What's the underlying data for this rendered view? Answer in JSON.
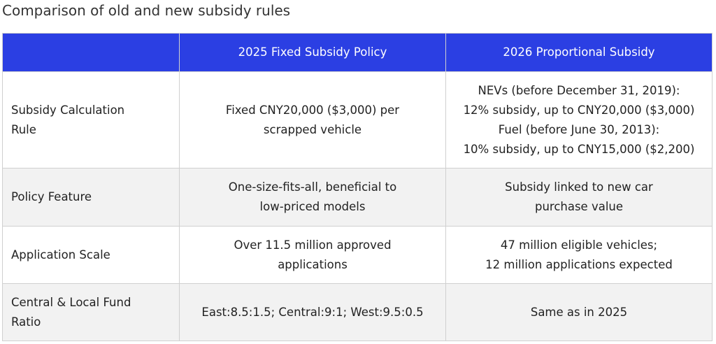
{
  "title": "Comparison of old and new subsidy rules",
  "table": {
    "header": [
      "2025 Fixed Subsidy Policy",
      "2026 Proportional Subsidy"
    ],
    "rows": [
      {
        "label": [
          "Subsidy Calculation",
          "Rule"
        ],
        "cells": [
          [
            "Fixed CNY20,000 ($3,000) per",
            "scrapped vehicle"
          ],
          [
            "NEVs (before December 31, 2019):",
            "12% subsidy, up to CNY20,000 ($3,000)",
            "Fuel (before June 30, 2013):",
            "10% subsidy, up to CNY15,000 ($2,200)"
          ]
        ]
      },
      {
        "label": [
          "Policy Feature"
        ],
        "cells": [
          [
            "One-size-fits-all, beneficial to",
            "low-priced models"
          ],
          [
            "Subsidy linked to new car",
            "purchase value"
          ]
        ]
      },
      {
        "label": [
          "Application Scale"
        ],
        "cells": [
          [
            "Over 11.5 million approved",
            "applications"
          ],
          [
            "47 million eligible vehicles;",
            "12 million applications expected"
          ]
        ]
      },
      {
        "label": [
          "Central & Local Fund",
          "Ratio"
        ],
        "cells": [
          [
            "East:8.5:1.5; Central:9:1; West:9.5:0.5"
          ],
          [
            "Same as in 2025"
          ]
        ]
      }
    ]
  }
}
